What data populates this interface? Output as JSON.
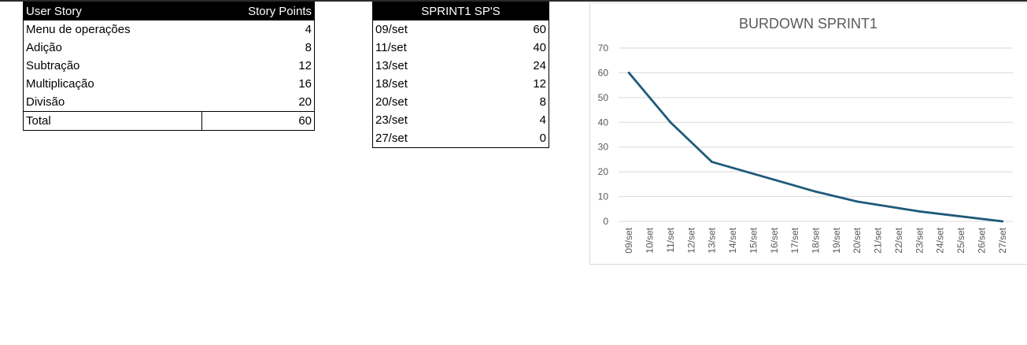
{
  "story_table": {
    "header": {
      "story": "User Story",
      "points": "Story Points"
    },
    "rows": [
      {
        "story": "Menu de operações",
        "points": "4"
      },
      {
        "story": "Adição",
        "points": "8"
      },
      {
        "story": "Subtração",
        "points": "12"
      },
      {
        "story": "Multiplicação",
        "points": "16"
      },
      {
        "story": "Divisão",
        "points": "20"
      }
    ],
    "total": {
      "label": "Total",
      "points": "60"
    }
  },
  "sprint_table": {
    "header": "SPRINT1 SP'S",
    "rows": [
      {
        "date": "09/set",
        "points": "60"
      },
      {
        "date": "11/set",
        "points": "40"
      },
      {
        "date": "13/set",
        "points": "24"
      },
      {
        "date": "18/set",
        "points": "12"
      },
      {
        "date": "20/set",
        "points": "8"
      },
      {
        "date": "23/set",
        "points": "4"
      },
      {
        "date": "27/set",
        "points": "0"
      }
    ]
  },
  "chart_data": {
    "type": "line",
    "title": "BURDOWN SPRINT1",
    "xlabel": "",
    "ylabel": "",
    "ylim": [
      0,
      70
    ],
    "yticks": [
      0,
      10,
      20,
      30,
      40,
      50,
      60,
      70
    ],
    "grid": true,
    "legend": "none",
    "line_color": "#1f5a7a",
    "grid_color": "#d9d9d9",
    "categories": [
      "09/set",
      "10/set",
      "11/set",
      "12/set",
      "13/set",
      "14/set",
      "15/set",
      "16/set",
      "17/set",
      "18/set",
      "19/set",
      "20/set",
      "21/set",
      "22/set",
      "23/set",
      "24/set",
      "25/set",
      "26/set",
      "27/set"
    ],
    "series": [
      {
        "points": [
          {
            "x": "09/set",
            "y": 60
          },
          {
            "x": "11/set",
            "y": 40
          },
          {
            "x": "13/set",
            "y": 24
          },
          {
            "x": "18/set",
            "y": 12
          },
          {
            "x": "20/set",
            "y": 8
          },
          {
            "x": "23/set",
            "y": 4
          },
          {
            "x": "27/set",
            "y": 0
          }
        ]
      }
    ]
  }
}
